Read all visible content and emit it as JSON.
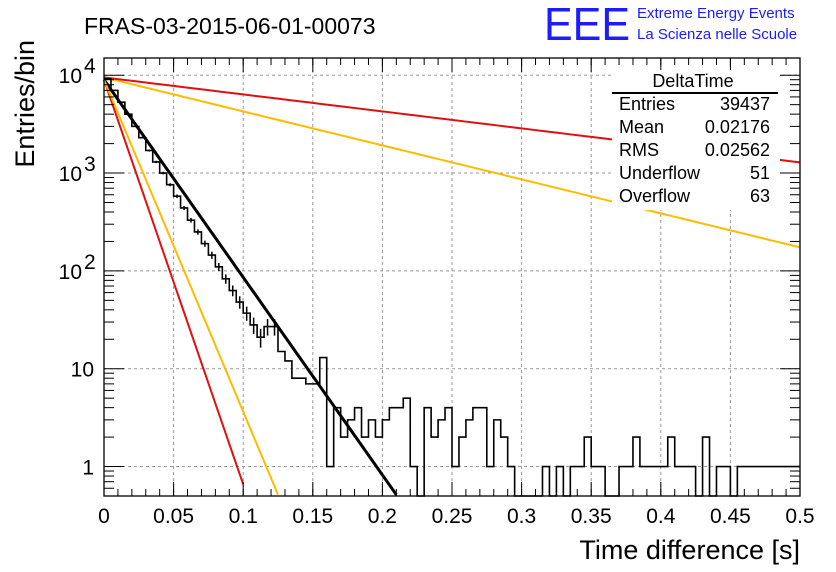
{
  "chart_data": {
    "type": "line",
    "title": "FRAS-03-2015-06-01-00073",
    "xlabel": "Time difference [s]",
    "ylabel": "Entries/bin",
    "xlim": [
      0,
      0.5
    ],
    "ylim": [
      0.5,
      15000
    ],
    "yscale": "log",
    "grid": true,
    "x_ticks": [
      0,
      0.05,
      0.1,
      0.15,
      0.2,
      0.25,
      0.3,
      0.35,
      0.4,
      0.45,
      0.5
    ],
    "x_tick_labels": [
      "0",
      "0.05",
      "0.1",
      "0.15",
      "0.2",
      "0.25",
      "0.3",
      "0.35",
      "0.4",
      "0.45",
      "0.5"
    ],
    "y_tick_labels": [
      {
        "value": 10000,
        "base": "10",
        "exp": "4"
      },
      {
        "value": 1000,
        "base": "10",
        "exp": "3"
      },
      {
        "value": 100,
        "base": "10",
        "exp": "2"
      },
      {
        "value": 10,
        "base": "10",
        "exp": ""
      },
      {
        "value": 1,
        "base": "1",
        "exp": ""
      }
    ],
    "histogram": {
      "name": "DeltaTime",
      "bin_width": 0.005,
      "counts": [
        9200,
        7000,
        5300,
        4000,
        3000,
        2300,
        1700,
        1300,
        1000,
        760,
        580,
        440,
        330,
        250,
        190,
        145,
        110,
        83,
        63,
        48,
        37,
        28,
        21,
        27,
        27,
        15,
        12,
        8,
        8,
        7,
        7,
        13,
        1,
        4,
        2,
        3,
        4,
        2,
        3,
        2,
        3,
        4,
        4,
        5,
        1,
        0,
        4,
        2,
        3,
        4,
        1,
        2,
        3,
        4,
        4,
        1,
        3,
        2,
        1,
        0,
        0,
        0,
        0,
        1,
        0,
        1,
        0,
        1,
        1,
        2,
        1,
        1,
        0,
        0,
        1,
        1,
        2,
        1,
        1,
        1,
        1,
        2,
        1,
        1,
        1,
        0,
        2,
        0,
        1,
        1,
        0,
        1,
        1,
        1,
        1,
        1,
        1,
        1,
        1,
        1
      ],
      "color": "#000000"
    },
    "curves": [
      {
        "name": "fit",
        "color": "#000000",
        "y0": 9000,
        "tau": 0.0215,
        "x_end": 0.21
      },
      {
        "name": "curve-red-steep",
        "color": "#e01010",
        "y0": 9000,
        "tau": 0.0105,
        "x_end": 0.1
      },
      {
        "name": "curve-orange-steep",
        "color": "#ffbb00",
        "y0": 9000,
        "tau": 0.0128,
        "x_end": 0.125
      },
      {
        "name": "curve-orange-shallow",
        "color": "#ffbb00",
        "y0": 9500,
        "tau": 0.125,
        "x_end": 0.5
      },
      {
        "name": "curve-red-shallow",
        "color": "#e01010",
        "y0": 9500,
        "tau": 0.25,
        "x_end": 0.5
      }
    ],
    "stats": {
      "title": "DeltaTime",
      "rows": [
        {
          "label": "Entries",
          "value": "39437"
        },
        {
          "label": "Mean",
          "value": "0.02176"
        },
        {
          "label": "RMS",
          "value": "0.02562"
        },
        {
          "label": "Underflow",
          "value": "51"
        },
        {
          "label": "Overflow",
          "value": "63"
        }
      ]
    }
  },
  "logo": {
    "mark": "EEE",
    "line1": "Extreme Energy Events",
    "line2": "La Scienza nelle Scuole"
  }
}
